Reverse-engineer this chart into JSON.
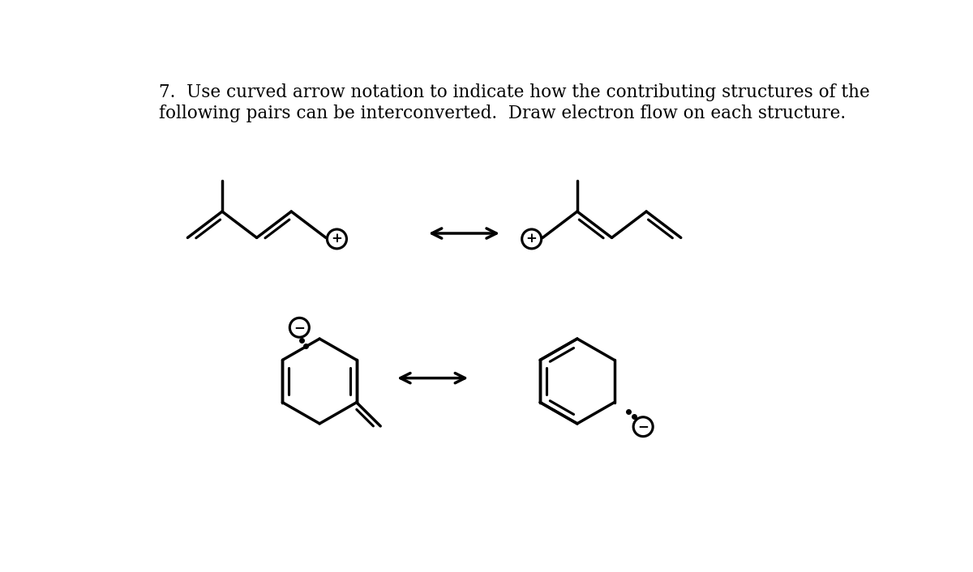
{
  "title_line1": "7.  Use curved arrow notation to indicate how the contributing structures of the",
  "title_line2": "following pairs can be interconverted.  Draw electron flow on each structure.",
  "bg_color": "#ffffff",
  "line_color": "#000000",
  "line_width": 2.5,
  "font_size_title": 15.5
}
